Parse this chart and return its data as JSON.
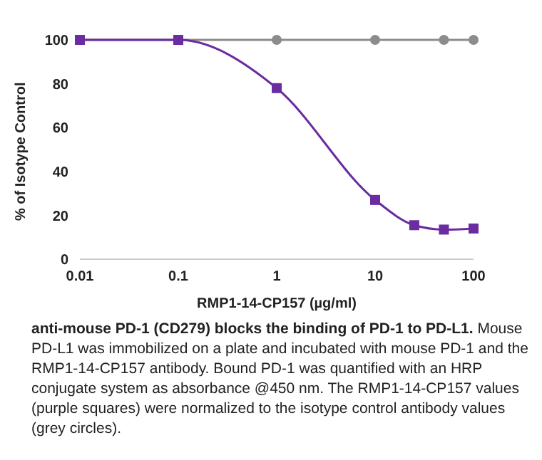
{
  "chart_data": {
    "type": "line",
    "xlabel": "RMP1-14-CP157 (µg/ml)",
    "ylabel": "% of Isotype Control",
    "log": "x",
    "xlim": [
      0.01,
      100
    ],
    "xticks": [
      0.01,
      0.1,
      1,
      10,
      100
    ],
    "ylim": [
      0,
      100
    ],
    "yticks": [
      0,
      20,
      40,
      60,
      80,
      100
    ],
    "grid": false,
    "series": [
      {
        "color": "#8c8c8c",
        "marker": "circle",
        "x": [
          0.01,
          0.1,
          1,
          10,
          50,
          100
        ],
        "values": [
          100,
          100,
          100,
          100,
          100,
          100
        ]
      },
      {
        "color": "#6a2ca0",
        "marker": "square",
        "x": [
          0.01,
          0.1,
          1,
          10,
          25,
          50,
          100
        ],
        "values": [
          100,
          100,
          78,
          27,
          15.5,
          13.5,
          14
        ]
      }
    ],
    "annotations": [
      "anti-mouse PD-1 (CD279) blocks the binding of PD-1 to PD-L1.",
      "Mouse PD-L1 was immobilized on a plate and incubated with mouse PD-1 and the RMP1-14-CP157 antibody. Bound PD-1 was quantified with an HRP conjugate system as absorbance @450 nm. The RMP1-14-CP157 values (purple squares) were normalized to the isotype control antibody values (grey circles)."
    ]
  }
}
